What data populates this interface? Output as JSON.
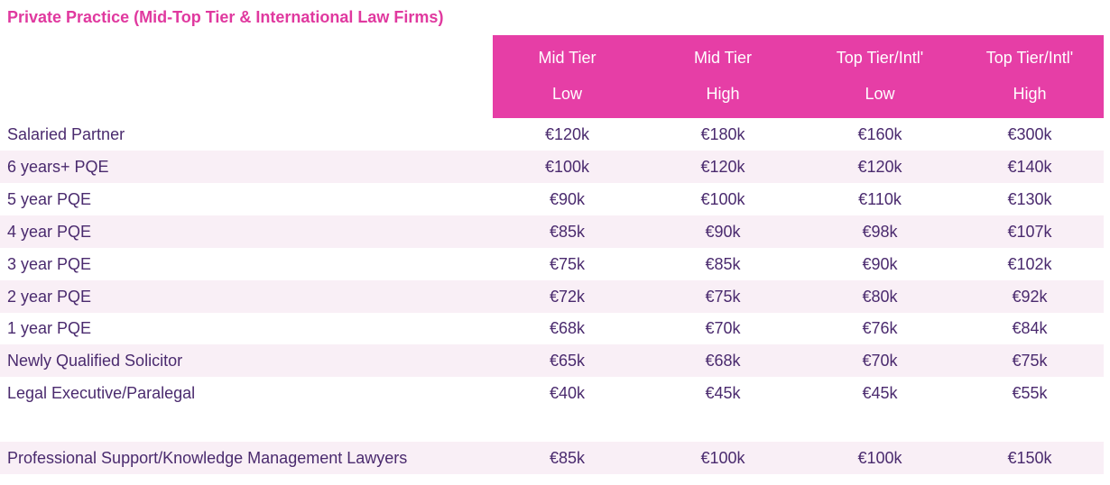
{
  "title": "Private Practice (Mid-Top Tier & International Law Firms)",
  "colors": {
    "accent": "#e63ea6",
    "title": "#e0399f",
    "text": "#4a2a6e",
    "row_shade": "#f9eff6"
  },
  "headers": [
    {
      "line1": "Mid Tier",
      "line2": "Low"
    },
    {
      "line1": "Mid Tier",
      "line2": "High"
    },
    {
      "line1": "Top Tier/Intl'",
      "line2": "Low"
    },
    {
      "line1": "Top Tier/Intl'",
      "line2": "High"
    }
  ],
  "rows": [
    {
      "label": "Salaried Partner",
      "values": [
        "€120k",
        "€180k",
        "€160k",
        "€300k"
      ]
    },
    {
      "label": "6 years+ PQE",
      "values": [
        "€100k",
        "€120k",
        "€120k",
        "€140k"
      ]
    },
    {
      "label": "5 year PQE",
      "values": [
        "€90k",
        "€100k",
        "€110k",
        "€130k"
      ]
    },
    {
      "label": "4 year PQE",
      "values": [
        "€85k",
        "€90k",
        "€98k",
        "€107k"
      ]
    },
    {
      "label": "3 year PQE",
      "values": [
        "€75k",
        "€85k",
        "€90k",
        "€102k"
      ]
    },
    {
      "label": "2 year PQE",
      "values": [
        "€72k",
        "€75k",
        "€80k",
        "€92k"
      ]
    },
    {
      "label": "1 year PQE",
      "values": [
        "€68k",
        "€70k",
        "€76k",
        "€84k"
      ]
    },
    {
      "label": "Newly Qualified Solicitor",
      "values": [
        "€65k",
        "€68k",
        "€70k",
        "€75k"
      ]
    },
    {
      "label": "Legal Executive/Paralegal",
      "values": [
        "€40k",
        "€45k",
        "€45k",
        "€55k"
      ]
    }
  ],
  "extra_row": {
    "label": "Professional Support/Knowledge Management Lawyers",
    "values": [
      "€85k",
      "€100k",
      "€100k",
      "€150k"
    ]
  }
}
